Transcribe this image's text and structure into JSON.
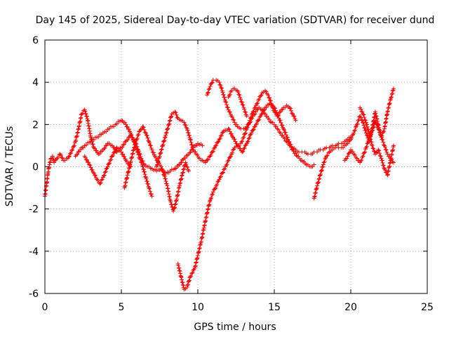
{
  "chart_data": {
    "type": "scatter",
    "title": "Day 145 of 2025, Sidereal Day-to-day VTEC variation (SDTVAR) for receiver dund",
    "xlabel": "GPS time / hours",
    "ylabel": "SDTVAR / TECUs",
    "xlim": [
      0,
      25
    ],
    "ylim": [
      -6,
      6
    ],
    "xticks": [
      0,
      5,
      10,
      15,
      20,
      25
    ],
    "xtick_labels": [
      "0",
      "5",
      "10",
      "15",
      "20",
      "25"
    ],
    "yticks": [
      -6,
      -4,
      -2,
      0,
      2,
      4,
      6
    ],
    "ytick_labels": [
      "-6",
      "-4",
      "-2",
      "0",
      "2",
      "4",
      "6"
    ],
    "grid": true,
    "marker": "+",
    "color": "#ff0000",
    "series": [
      {
        "name": "track-a",
        "x": [
          0.0,
          0.1,
          0.2,
          0.3,
          0.4,
          0.5,
          0.6,
          0.8,
          1.0,
          1.2,
          1.5,
          1.8,
          2.0,
          2.2,
          2.4,
          2.6,
          2.8,
          3.0,
          3.2,
          3.5,
          3.8,
          4.1,
          4.4,
          4.7,
          5.0,
          5.3,
          5.6,
          5.9,
          6.1,
          6.3,
          6.5,
          6.7,
          7.0,
          7.3,
          7.6,
          7.9,
          8.2,
          8.5,
          8.8,
          9.1,
          9.4,
          9.7,
          10.0,
          10.3
        ],
        "y": [
          -1.4,
          -0.9,
          -0.3,
          0.1,
          0.4,
          0.5,
          0.2,
          0.4,
          0.6,
          0.3,
          0.4,
          0.8,
          1.2,
          1.8,
          2.5,
          2.7,
          2.2,
          1.4,
          0.9,
          0.6,
          0.8,
          1.1,
          1.0,
          0.7,
          0.9,
          1.2,
          1.5,
          1.2,
          0.8,
          0.4,
          0.1,
          0.0,
          -0.1,
          -0.2,
          -0.1,
          -0.3,
          -0.2,
          -0.1,
          0.1,
          0.4,
          0.6,
          0.9,
          1.1,
          1.0
        ]
      },
      {
        "name": "track-b",
        "x": [
          2.0,
          2.3,
          2.6,
          3.0,
          3.4,
          3.8,
          4.2,
          4.6,
          5.0,
          5.3,
          5.6,
          5.8,
          6.0,
          6.2,
          6.4,
          6.6,
          6.8,
          7.0
        ],
        "y": [
          0.5,
          0.8,
          1.0,
          1.2,
          1.4,
          1.6,
          1.8,
          2.0,
          2.2,
          2.0,
          1.6,
          1.2,
          0.8,
          0.4,
          0.0,
          -0.5,
          -1.0,
          -1.4
        ]
      },
      {
        "name": "track-c",
        "x": [
          2.6,
          2.9,
          3.2,
          3.4,
          3.6,
          3.8,
          4.1,
          4.4,
          4.7,
          5.0,
          5.3,
          5.6
        ],
        "y": [
          0.5,
          0.1,
          -0.3,
          -0.6,
          -0.8,
          -0.5,
          0.0,
          0.5,
          0.9,
          0.7,
          0.3,
          0.0
        ]
      },
      {
        "name": "track-d",
        "x": [
          5.2,
          5.4,
          5.6,
          5.8,
          6.0,
          6.2,
          6.4,
          6.6,
          6.8,
          7.0,
          7.2,
          7.4,
          7.6,
          7.8,
          8.0,
          8.2,
          8.4,
          8.6,
          8.8,
          9.0,
          9.2,
          9.4
        ],
        "y": [
          -1.0,
          -0.4,
          0.2,
          0.8,
          1.3,
          1.7,
          1.9,
          1.6,
          1.2,
          0.8,
          0.5,
          0.2,
          0.0,
          -0.4,
          -0.9,
          -1.6,
          -2.1,
          -1.6,
          -0.9,
          -0.3,
          0.2,
          -0.2
        ]
      },
      {
        "name": "track-e",
        "x": [
          7.3,
          7.5,
          7.7,
          7.9,
          8.1,
          8.3,
          8.5,
          8.7,
          8.9,
          9.1,
          9.3,
          9.5,
          9.7,
          9.9,
          10.1,
          10.3,
          10.5,
          10.8,
          11.1,
          11.4,
          11.7,
          12.0,
          12.3,
          12.6,
          12.9,
          13.2,
          13.5,
          13.8,
          14.1,
          14.4,
          14.7,
          15.0,
          15.3,
          15.6,
          15.9,
          16.2,
          16.5,
          16.8,
          17.1,
          17.4,
          17.6
        ],
        "y": [
          0.0,
          0.5,
          1.0,
          1.5,
          2.0,
          2.5,
          2.6,
          2.3,
          2.2,
          2.1,
          1.8,
          1.3,
          0.8,
          0.6,
          0.4,
          0.3,
          0.2,
          0.5,
          0.9,
          1.3,
          1.7,
          1.8,
          1.4,
          1.0,
          0.7,
          1.1,
          1.6,
          2.0,
          2.4,
          2.8,
          3.0,
          2.8,
          2.3,
          1.8,
          1.3,
          0.8,
          0.5,
          0.3,
          0.1,
          0.0,
          0.1
        ]
      },
      {
        "name": "track-f",
        "x": [
          8.7,
          8.9,
          9.1,
          9.3,
          9.5,
          9.8,
          10.0,
          10.2,
          10.4,
          10.6,
          10.8,
          11.0,
          11.2,
          11.4,
          11.6,
          11.8,
          12.0,
          12.2,
          12.4,
          12.6,
          12.8,
          13.0,
          13.2,
          13.4,
          13.6,
          13.8,
          14.0,
          14.2,
          14.4,
          14.6,
          14.8,
          15.0,
          15.2,
          15.4,
          15.6,
          15.8,
          16.0,
          16.2,
          16.4
        ],
        "y": [
          -4.6,
          -5.2,
          -5.8,
          -5.7,
          -5.2,
          -4.8,
          -4.2,
          -3.6,
          -2.9,
          -2.2,
          -1.6,
          -1.2,
          -0.9,
          -0.6,
          -0.3,
          0.0,
          0.3,
          0.6,
          0.9,
          1.0,
          1.1,
          1.4,
          1.8,
          2.2,
          2.6,
          2.9,
          3.2,
          3.5,
          3.6,
          3.4,
          3.0,
          2.6,
          2.4,
          2.6,
          2.8,
          2.9,
          2.8,
          2.5,
          2.2
        ]
      },
      {
        "name": "track-g",
        "x": [
          10.6,
          10.8,
          11.0,
          11.2,
          11.4,
          11.6,
          11.8,
          12.0,
          12.2,
          12.4,
          12.6,
          12.8,
          13.0,
          13.2,
          13.4,
          13.6,
          13.8,
          14.0,
          14.2,
          14.4,
          14.6,
          14.8,
          15.0,
          15.2,
          15.4,
          15.6,
          15.8,
          16.0,
          16.2,
          16.4,
          16.6,
          16.8,
          17.0,
          17.2,
          17.4,
          17.6,
          17.8,
          18.0,
          18.2,
          18.4,
          18.6,
          18.8,
          19.0,
          19.2,
          19.4,
          19.6,
          19.8,
          20.0
        ],
        "y": [
          3.4,
          3.8,
          4.1,
          4.1,
          4.0,
          3.6,
          3.1,
          2.7,
          2.4,
          2.1,
          1.9,
          1.8,
          1.8,
          1.9,
          2.1,
          2.4,
          2.6,
          2.8,
          2.7,
          2.5,
          2.3,
          2.1,
          2.0,
          1.8,
          1.6,
          1.4,
          1.2,
          1.0,
          0.9,
          0.8,
          0.7,
          0.7,
          0.7,
          0.6,
          0.6,
          0.7,
          0.7,
          0.8,
          0.8,
          0.9,
          0.9,
          1.0,
          1.0,
          1.1,
          1.1,
          1.2,
          1.3,
          1.4
        ]
      },
      {
        "name": "track-h",
        "x": [
          12.0,
          12.2,
          12.4,
          12.6,
          12.8,
          13.0,
          13.2
        ],
        "y": [
          3.3,
          3.6,
          3.7,
          3.6,
          3.2,
          2.8,
          2.4
        ]
      },
      {
        "name": "track-i",
        "x": [
          17.6,
          17.8,
          18.0,
          18.2,
          18.4,
          18.6,
          18.8,
          19.0,
          19.2,
          19.4,
          19.6,
          19.8,
          20.0,
          20.2,
          20.4,
          20.6,
          20.8,
          21.0,
          21.2,
          21.4,
          21.6,
          21.8,
          22.0,
          22.2,
          22.4,
          22.6,
          22.8
        ],
        "y": [
          -1.5,
          -0.9,
          -0.4,
          0.1,
          0.5,
          0.7,
          0.8,
          0.9,
          0.9,
          0.9,
          1.0,
          1.1,
          1.3,
          1.6,
          2.0,
          2.4,
          2.1,
          1.6,
          1.2,
          1.8,
          2.6,
          2.0,
          1.4,
          1.8,
          2.6,
          3.2,
          3.7
        ]
      },
      {
        "name": "track-j",
        "x": [
          19.6,
          19.8,
          20.0,
          20.2,
          20.4,
          20.6,
          20.8,
          21.0,
          21.2,
          21.4,
          21.6,
          21.8,
          22.0,
          22.2,
          22.4,
          22.6,
          22.8
        ],
        "y": [
          0.3,
          0.5,
          0.8,
          0.6,
          0.4,
          0.2,
          0.5,
          0.9,
          1.3,
          1.7,
          2.2,
          1.8,
          1.4,
          1.0,
          0.6,
          0.4,
          0.2
        ]
      },
      {
        "name": "track-k",
        "x": [
          20.6,
          20.8,
          21.0,
          21.2,
          21.4,
          21.6,
          21.8,
          22.0,
          22.2,
          22.4,
          22.6,
          22.8
        ],
        "y": [
          2.8,
          2.5,
          2.1,
          1.6,
          1.0,
          0.6,
          0.8,
          0.4,
          -0.1,
          -0.4,
          0.3,
          1.0
        ]
      }
    ]
  }
}
